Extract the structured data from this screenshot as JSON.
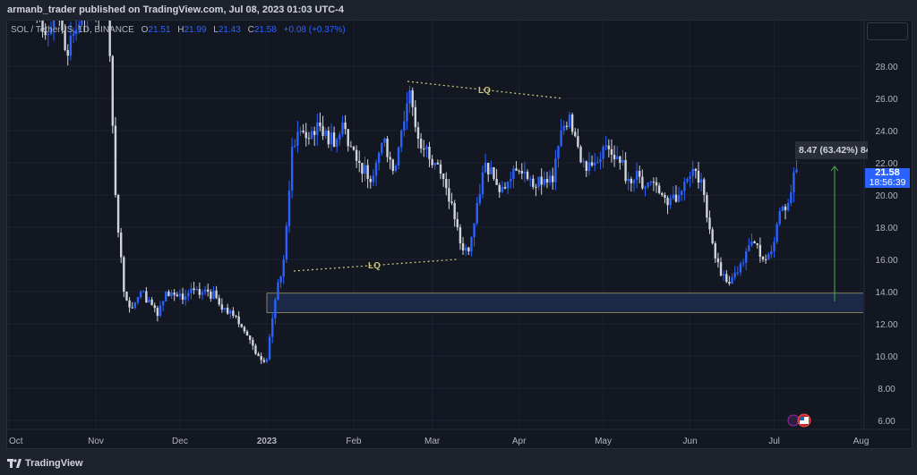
{
  "header": {
    "published": "armanb_trader published on TradingView.com, Jul 08, 2023 01:03 UTC-4"
  },
  "legend": {
    "symbol": "SOL / TetherUS, 1D, BINANCE",
    "o_label": "O",
    "o": "21.51",
    "h_label": "H",
    "h": "21.99",
    "l_label": "L",
    "l": "21.43",
    "c_label": "C",
    "c": "21.58",
    "change": "+0.08 (+0.37%)"
  },
  "price_tag": {
    "price": "21.58",
    "countdown": "18:56:39"
  },
  "measure": {
    "label": "8.47 (63.42%) 84"
  },
  "annotations": {
    "lq_top": "LQ",
    "lq_bottom": "LQ"
  },
  "footer": {
    "brand": "TradingView"
  },
  "colors": {
    "background": "#131722",
    "up": "#2962ff",
    "down": "#d1d4dc",
    "zone": "#1e2b4a",
    "lq": "#c8c27a",
    "measure": "#4caf50"
  },
  "chart_data": {
    "type": "candlestick",
    "interval_days": 3,
    "start": "2022-10-01",
    "end": "2023-07-07",
    "closes": [
      33,
      32,
      33,
      31,
      30,
      32,
      29,
      30,
      31,
      32,
      31,
      33,
      20,
      14,
      13,
      14,
      13.5,
      12.5,
      14,
      13.8,
      13.5,
      14.2,
      13.8,
      14,
      13.6,
      13,
      12.5,
      11.8,
      11,
      10,
      9.8,
      13.5,
      16,
      23,
      24,
      23.5,
      24.5,
      24,
      23,
      24.5,
      23,
      22,
      21,
      22,
      23.5,
      21.5,
      24,
      26.5,
      23.5,
      23,
      22,
      21,
      19.5,
      17,
      16.5,
      19.5,
      22,
      21,
      20.5,
      21,
      21.5,
      21,
      20.5,
      21,
      20.8,
      24,
      25,
      23,
      21.5,
      22,
      23,
      22.5,
      22,
      21,
      21.5,
      20.5,
      20.8,
      20,
      19.8,
      20,
      21,
      21.5,
      20,
      17,
      15,
      14.5,
      15.2,
      16.5,
      17,
      16,
      16.5,
      19,
      19.5,
      21.58
    ],
    "y_ticks": [
      "28.00",
      "26.00",
      "24.00",
      "22.00",
      "20.00",
      "18.00",
      "16.00",
      "14.00",
      "12.00",
      "10.00",
      "8.00",
      "6.00"
    ],
    "x_ticks": [
      "Oct",
      "Nov",
      "Dec",
      "2023",
      "Feb",
      "Mar",
      "Apr",
      "May",
      "Jun",
      "Jul",
      "Aug"
    ],
    "zone": [
      12.7,
      13.9
    ],
    "ylim": [
      5.5,
      31
    ]
  }
}
